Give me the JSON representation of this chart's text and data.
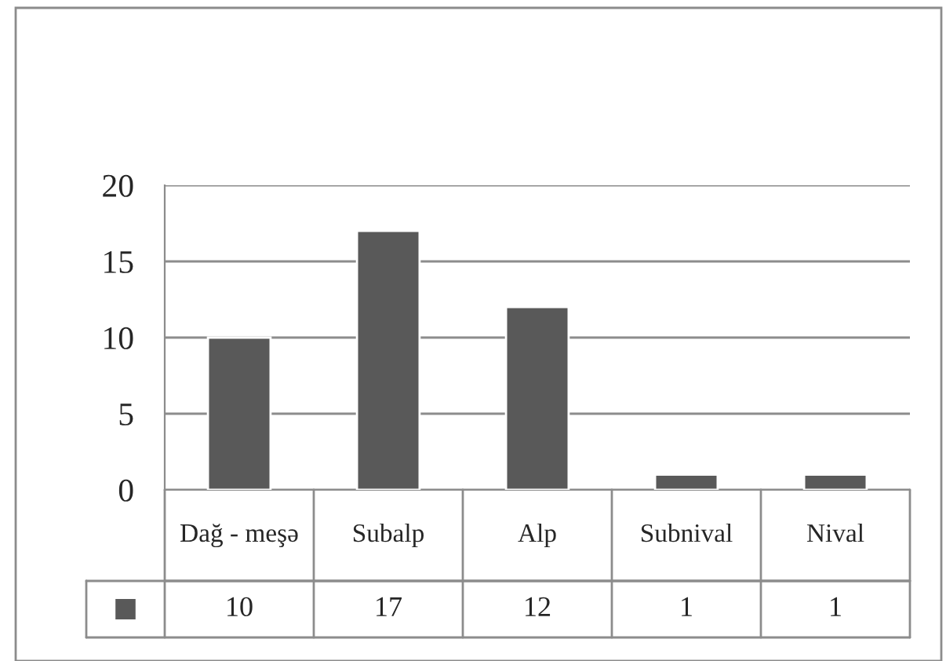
{
  "chart_data": {
    "type": "bar",
    "categories": [
      "Dağ - meşə",
      "Subalp",
      "Alp",
      "Subnival",
      "Nival"
    ],
    "series": [
      {
        "color": "#595959",
        "values": [
          10,
          17,
          12,
          1,
          1
        ]
      }
    ],
    "ylim": [
      0,
      20
    ],
    "yticks": [
      0,
      5,
      10,
      15,
      20
    ],
    "grid": "y",
    "data_labels": true
  }
}
